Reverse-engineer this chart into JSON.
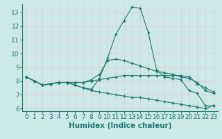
{
  "xlabel": "Humidex (Indice chaleur)",
  "x": [
    0,
    1,
    2,
    3,
    4,
    5,
    6,
    7,
    8,
    9,
    10,
    11,
    12,
    13,
    14,
    15,
    16,
    17,
    18,
    19,
    20,
    21,
    22,
    23
  ],
  "lines": [
    [
      8.3,
      8.0,
      7.7,
      7.8,
      7.9,
      7.9,
      7.7,
      7.5,
      7.4,
      8.2,
      9.7,
      11.4,
      12.4,
      13.4,
      13.3,
      11.5,
      8.8,
      8.3,
      8.2,
      8.1,
      7.3,
      7.1,
      6.2,
      6.2
    ],
    [
      8.3,
      8.0,
      7.7,
      7.8,
      7.9,
      7.9,
      7.9,
      7.9,
      8.1,
      8.5,
      9.5,
      9.6,
      9.5,
      9.3,
      9.1,
      8.9,
      8.7,
      8.6,
      8.5,
      8.3,
      8.2,
      7.9,
      7.3,
      7.1
    ],
    [
      8.3,
      8.0,
      7.7,
      7.8,
      7.9,
      7.9,
      7.9,
      7.9,
      8.0,
      8.1,
      8.2,
      8.3,
      8.4,
      8.4,
      8.4,
      8.4,
      8.4,
      8.4,
      8.4,
      8.4,
      8.3,
      7.8,
      7.5,
      7.2
    ],
    [
      8.3,
      8.0,
      7.7,
      7.8,
      7.9,
      7.9,
      7.7,
      7.5,
      7.3,
      7.2,
      7.1,
      7.0,
      6.9,
      6.8,
      6.8,
      6.7,
      6.6,
      6.5,
      6.4,
      6.3,
      6.2,
      6.1,
      6.0,
      6.2
    ]
  ],
  "line_color": "#1a7a6e",
  "bg_color": "#cce8e8",
  "grid_color": "#b8d8d8",
  "ylim": [
    5.8,
    13.6
  ],
  "yticks": [
    6,
    7,
    8,
    9,
    10,
    11,
    12,
    13
  ],
  "xlim": [
    -0.5,
    23.5
  ],
  "tick_fontsize": 6.5,
  "label_fontsize": 7.5
}
